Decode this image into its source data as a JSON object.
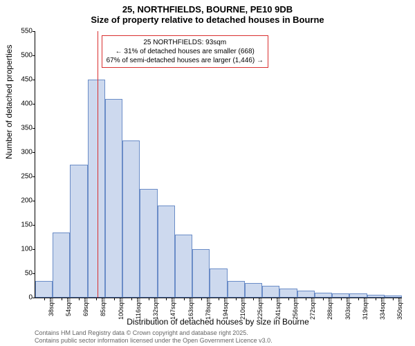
{
  "titles": {
    "line1": "25, NORTHFIELDS, BOURNE, PE10 9DB",
    "line2": "Size of property relative to detached houses in Bourne"
  },
  "axes": {
    "ylabel": "Number of detached properties",
    "xlabel": "Distribution of detached houses by size in Bourne"
  },
  "footer": {
    "line1": "Contains HM Land Registry data © Crown copyright and database right 2025.",
    "line2": "Contains public sector information licensed under the Open Government Licence v3.0."
  },
  "chart": {
    "type": "histogram",
    "ylim": [
      0,
      550
    ],
    "ytick_step": 50,
    "background_color": "#ffffff",
    "bar_fill": "#cdd9ee",
    "bar_stroke": "#6a8cc7",
    "refline_color": "#d92e2e",
    "annot_border": "#d92e2e",
    "categories": [
      "38sqm",
      "54sqm",
      "69sqm",
      "85sqm",
      "100sqm",
      "116sqm",
      "132sqm",
      "147sqm",
      "163sqm",
      "178sqm",
      "194sqm",
      "210sqm",
      "225sqm",
      "241sqm",
      "256sqm",
      "272sqm",
      "288sqm",
      "303sqm",
      "319sqm",
      "334sqm",
      "350sqm"
    ],
    "values": [
      35,
      135,
      275,
      450,
      410,
      325,
      225,
      190,
      130,
      100,
      60,
      35,
      30,
      25,
      18,
      15,
      10,
      8,
      8,
      6,
      5
    ],
    "reference_bin_index": 3,
    "reference_fraction_in_bin": 0.55
  },
  "annotation": {
    "line1": "25 NORTHFIELDS: 93sqm",
    "line2": "← 31% of detached houses are smaller (668)",
    "line3": "67% of semi-detached houses are larger (1,446) →"
  }
}
